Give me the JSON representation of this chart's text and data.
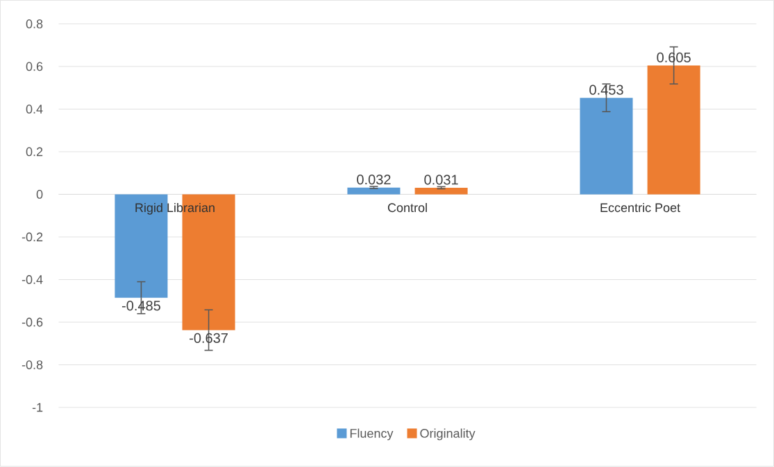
{
  "chart_data": {
    "type": "bar",
    "categories": [
      "Rigid Librarian",
      "Control",
      "Eccentric Poet"
    ],
    "series": [
      {
        "name": "Fluency",
        "color": "#5b9bd5",
        "values": [
          -0.485,
          0.032,
          0.453
        ],
        "errors": [
          0.075,
          0.005,
          0.065
        ]
      },
      {
        "name": "Originality",
        "color": "#ed7d31",
        "values": [
          -0.637,
          0.031,
          0.605
        ],
        "errors": [
          0.095,
          0.005,
          0.087
        ]
      }
    ],
    "ylim": [
      -1,
      0.8
    ],
    "yticks": [
      -1,
      -0.8,
      -0.6,
      -0.4,
      -0.2,
      0,
      0.2,
      0.4,
      0.6,
      0.8
    ],
    "grid": "y",
    "legend": "bottom",
    "data_labels": true
  }
}
